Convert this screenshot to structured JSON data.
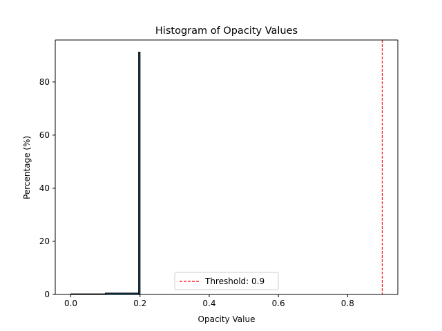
{
  "chart_data": {
    "type": "bar",
    "title": "Histogram of Opacity Values",
    "xlabel": "Opacity Value",
    "ylabel": "Percentage (%)",
    "xlim": [
      -0.045,
      0.945
    ],
    "ylim": [
      0,
      95.8
    ],
    "xticks": [
      0.0,
      0.2,
      0.4,
      0.6,
      0.8
    ],
    "xtick_labels": [
      "0.0",
      "0.2",
      "0.4",
      "0.6",
      "0.8"
    ],
    "yticks": [
      0,
      20,
      40,
      60,
      80
    ],
    "ytick_labels": [
      "0",
      "20",
      "40",
      "60",
      "80"
    ],
    "bins": [
      {
        "x0": 0.0,
        "x1": 0.1,
        "value": 0.2
      },
      {
        "x0": 0.1,
        "x1": 0.196,
        "value": 0.5
      },
      {
        "x0": 0.196,
        "x1": 0.2,
        "value": 91.2
      }
    ],
    "threshold": {
      "value": 0.9,
      "label": "Threshold: 0.9",
      "color": "#ff0000"
    },
    "bar_color": "#1f77b4",
    "edge_color": "#000000",
    "grid": false,
    "legend_position": "lower center"
  }
}
